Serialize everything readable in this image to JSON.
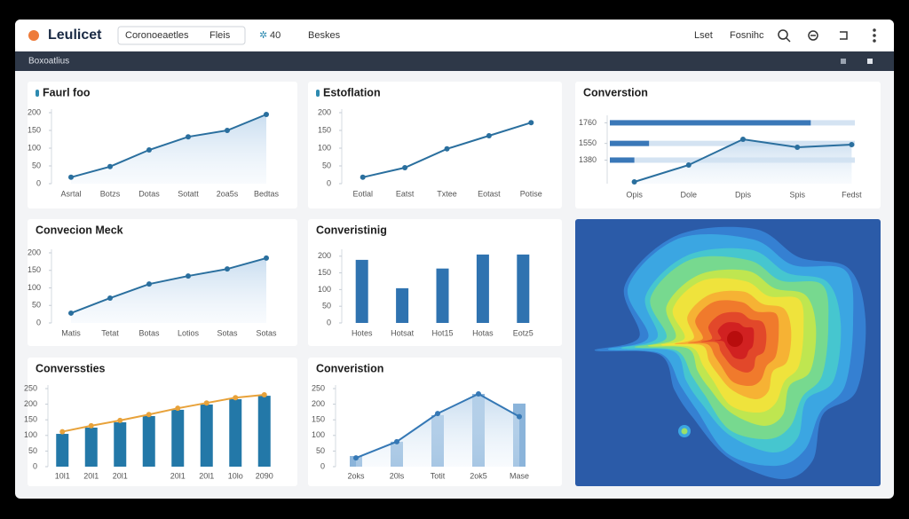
{
  "header": {
    "logo": "Leulicet",
    "search": "Coronoeaetles",
    "filter": "Fleis",
    "count": "40",
    "menu": "Beskes",
    "links": [
      "Lset",
      "Fosnihc"
    ],
    "subtitle": "Boxoatlius"
  },
  "chart_data": [
    {
      "type": "line",
      "title": "Faurl foo",
      "categories": [
        "Asrtal",
        "Botzs",
        "Dotas",
        "Sotatt",
        "2oa5s",
        "Bedtas"
      ],
      "series": [
        {
          "color": "#2a6f9e",
          "values": [
            18,
            48,
            95,
            132,
            150,
            195
          ]
        }
      ],
      "ylim": [
        0,
        200
      ],
      "yticks": [
        0,
        50,
        100,
        150,
        200
      ],
      "area": true
    },
    {
      "type": "line",
      "title": "Estoflation",
      "categories": [
        "Eotlal",
        "Eatst",
        "Txtee",
        "Eotast",
        "Potise"
      ],
      "series": [
        {
          "color": "#2a6f9e",
          "values": [
            18,
            45,
            98,
            135,
            172
          ]
        }
      ],
      "ylim": [
        0,
        200
      ],
      "yticks": [
        0,
        50,
        100,
        150,
        200
      ],
      "area": false
    },
    {
      "type": "line",
      "title": "Converstion",
      "categories": [
        "Opis",
        "Dole",
        "Dpis",
        "Spis",
        "Fedst"
      ],
      "series": [
        {
          "color": "#2a6f9e",
          "values": [
            1158,
            1330,
            1592,
            1511,
            1538
          ]
        }
      ],
      "ylim": [
        1140,
        1800
      ],
      "yticks": [
        1380,
        1550,
        1760
      ],
      "area": true,
      "hbars": {
        "color": "#3a78b8",
        "values": [
          82,
          16,
          10
        ],
        "xlim": [
          0,
          100
        ]
      }
    },
    {
      "type": "line",
      "title": "Convecion Meck",
      "categories": [
        "Matis",
        "Tetat",
        "Botas",
        "Lotios",
        "Sotas",
        "Sotas"
      ],
      "series": [
        {
          "color": "#2a6f9e",
          "values": [
            28,
            71,
            111,
            134,
            154,
            185
          ]
        }
      ],
      "ylim": [
        0,
        200
      ],
      "yticks": [
        0,
        50,
        100,
        150,
        200
      ],
      "area": true
    },
    {
      "type": "bar",
      "title": "Converistinig",
      "categories": [
        "Hotes",
        "Hotsat",
        "Hot15",
        "Hotas",
        "Eotz5"
      ],
      "series": [
        {
          "color": "#2f73b0",
          "values": [
            189,
            104,
            163,
            205,
            205
          ]
        }
      ],
      "ylim": [
        0,
        210
      ],
      "yticks": [
        0,
        50,
        100,
        150,
        200
      ]
    },
    {
      "type": "combo",
      "title": "Converssties",
      "categories": [
        "10l1",
        "20l1",
        "20l1",
        null,
        "20l1",
        "20l1",
        "10lo",
        "2090"
      ],
      "series": [
        {
          "type": "bar",
          "color": "#2378a8",
          "values": [
            105,
            125,
            142,
            162,
            182,
            199,
            216,
            227
          ]
        },
        {
          "type": "line",
          "color": "#e8a23a",
          "values": [
            112,
            131,
            148,
            167,
            187,
            204,
            221,
            230
          ]
        }
      ],
      "ylim": [
        0,
        250
      ],
      "yticks": [
        0,
        50,
        100,
        150,
        200,
        250
      ]
    },
    {
      "type": "combo",
      "title": "Converistion",
      "categories": [
        "2oks",
        "20ls",
        "Totit",
        "2ok5",
        "Mase"
      ],
      "series": [
        {
          "type": "bar",
          "color": "#8bb4da",
          "values": [
            34,
            80,
            165,
            233,
            202
          ]
        },
        {
          "type": "line",
          "color": "#3578b5",
          "values": [
            28,
            80,
            170,
            233,
            160
          ]
        }
      ],
      "ylim": [
        0,
        250
      ],
      "yticks": [
        0,
        50,
        100,
        150,
        200,
        250
      ],
      "area": true
    }
  ]
}
